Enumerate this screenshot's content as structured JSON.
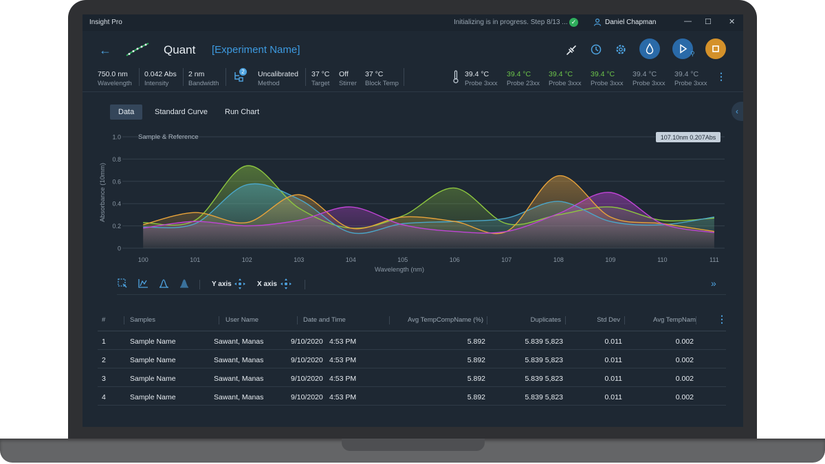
{
  "window": {
    "app_name": "Insight Pro",
    "status": "Initializing is in progress. Step 8/13 ...",
    "user_name": "Daniel Chapman"
  },
  "header": {
    "title": "Quant",
    "experiment_name": "[Experiment Name]",
    "icons": [
      "back-arrow-icon",
      "plug-icon",
      "timer-icon",
      "gear-icon",
      "drop-icon",
      "play-icon",
      "stop-icon"
    ],
    "accent_color": "#3d9ae0",
    "stop_color": "#d4912a"
  },
  "info": {
    "wavelength": {
      "value": "750.0 nm",
      "label": "Wavelength"
    },
    "intensity": {
      "value": "0.042 Abs",
      "label": "Intensity"
    },
    "bandwidth": {
      "value": "2 nm",
      "label": "Bandwidth"
    },
    "method_badge": "2",
    "method": {
      "value": "Uncalibrated",
      "label": "Method"
    },
    "target": {
      "value": "37 °C",
      "label": "Target"
    },
    "stirrer": {
      "value": "Off",
      "label": "Stirrer"
    },
    "block_temp": {
      "value": "37 °C",
      "label": "Block Temp"
    }
  },
  "probes": [
    {
      "value": "39.4 °C",
      "label": "Probe 3xxx",
      "color": "#dfe5eb"
    },
    {
      "value": "39.4 °C",
      "label": "Probe 23xx",
      "color": "#6cc34a"
    },
    {
      "value": "39.4 °C",
      "label": "Probe 3xxx",
      "color": "#6cc34a"
    },
    {
      "value": "39.4 °C",
      "label": "Probe 3xxx",
      "color": "#6cc34a"
    },
    {
      "value": "39.4 °C",
      "label": "Probe 3xxx",
      "color": "#8b98a5"
    },
    {
      "value": "39.4 °C",
      "label": "Probe 3xxx",
      "color": "#8b98a5"
    }
  ],
  "tabs": [
    "Data",
    "Standard Curve",
    "Run Chart"
  ],
  "chart_data": {
    "type": "line",
    "title": "Sample & Reference",
    "xlabel": "Wavelength (nm)",
    "ylabel": "Absorbance (10mm)",
    "x": [
      100,
      101,
      102,
      103,
      104,
      105,
      106,
      107,
      108,
      109,
      110,
      111
    ],
    "xlim": [
      99.6,
      111.2
    ],
    "ylim": [
      0,
      1.0
    ],
    "yticks": [
      "0",
      "0.2",
      "0.4",
      "0.6",
      "0.8",
      "1.0"
    ],
    "grid": true,
    "tooltip": {
      "wavelength": "107.10",
      "wavelength_unit": "nm",
      "absorbance": "0.207",
      "absorbance_unit": "Abs"
    },
    "series": [
      {
        "color": "#8dc63f",
        "values": [
          0.23,
          0.25,
          0.74,
          0.36,
          0.18,
          0.29,
          0.54,
          0.22,
          0.3,
          0.37,
          0.25,
          0.27
        ]
      },
      {
        "color": "#4aa6c9",
        "values": [
          0.19,
          0.22,
          0.57,
          0.44,
          0.14,
          0.22,
          0.24,
          0.27,
          0.42,
          0.24,
          0.21,
          0.28
        ]
      },
      {
        "color": "#e8a33a",
        "values": [
          0.21,
          0.32,
          0.23,
          0.48,
          0.18,
          0.28,
          0.24,
          0.15,
          0.65,
          0.28,
          0.22,
          0.15
        ]
      },
      {
        "color": "#c044d6",
        "values": [
          0.18,
          0.24,
          0.2,
          0.25,
          0.37,
          0.21,
          0.15,
          0.15,
          0.31,
          0.5,
          0.22,
          0.14
        ]
      }
    ]
  },
  "chart_toolbar": {
    "y_axis_label": "Y axis",
    "x_axis_label": "X axis",
    "icons": [
      "select-icon",
      "chart-view-icon",
      "peak-icon",
      "area-icon",
      "y-move-icon",
      "x-move-icon",
      "expand-icon"
    ]
  },
  "table": {
    "columns": [
      "#",
      "Samples",
      "User Name",
      "Date and Time",
      "Avg TempCompName (%)",
      "Duplicates",
      "Std Dev",
      "Avg TempNam"
    ],
    "rows": [
      [
        "1",
        "Sample Name",
        "Sawant, Manas",
        "9/10/2020",
        "4:53 PM",
        "5.892",
        "5.839 5,823",
        "0.011",
        "0.002"
      ],
      [
        "2",
        "Sample Name",
        "Sawant, Manas",
        "9/10/2020",
        "4:53 PM",
        "5.892",
        "5.839 5,823",
        "0.011",
        "0.002"
      ],
      [
        "3",
        "Sample Name",
        "Sawant, Manas",
        "9/10/2020",
        "4:53 PM",
        "5.892",
        "5.839 5,823",
        "0.011",
        "0.002"
      ],
      [
        "4",
        "Sample Name",
        "Sawant, Manas",
        "9/10/2020",
        "4:53 PM",
        "5.892",
        "5.839 5,823",
        "0.011",
        "0.002"
      ]
    ]
  }
}
